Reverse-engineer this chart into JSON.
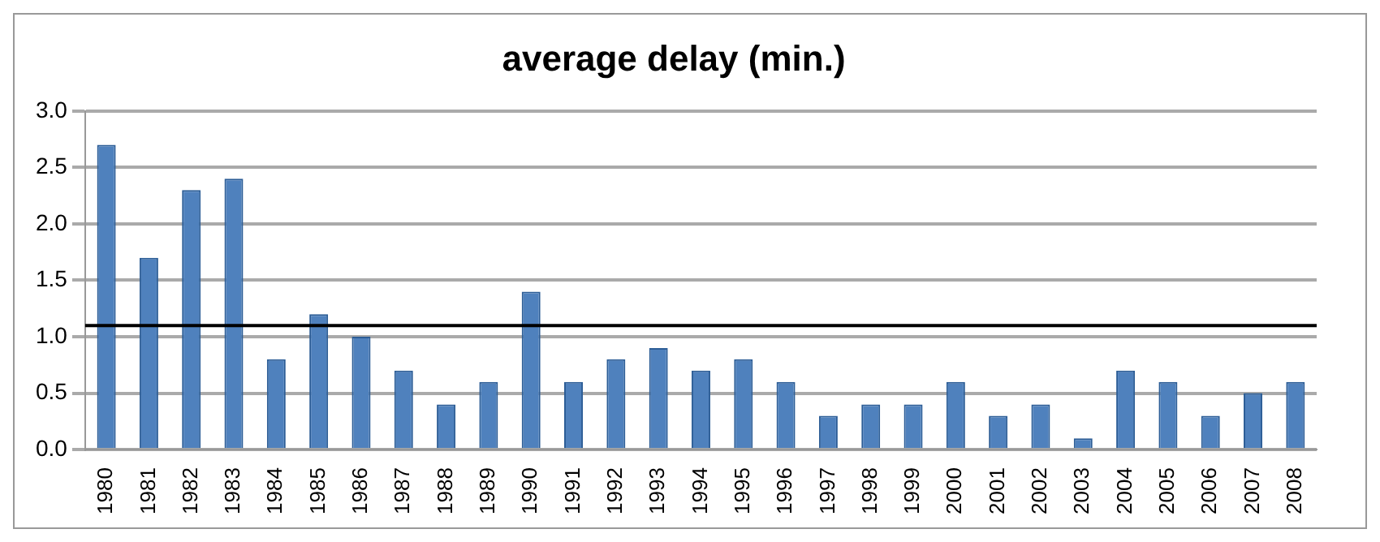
{
  "chart_data": {
    "type": "bar",
    "title": "average delay (min.)",
    "categories": [
      "1980",
      "1981",
      "1982",
      "1983",
      "1984",
      "1985",
      "1986",
      "1987",
      "1988",
      "1989",
      "1990",
      "1991",
      "1992",
      "1993",
      "1994",
      "1995",
      "1996",
      "1997",
      "1998",
      "1999",
      "2000",
      "2001",
      "2002",
      "2003",
      "2004",
      "2005",
      "2006",
      "2007",
      "2008"
    ],
    "values": [
      2.7,
      1.7,
      2.3,
      2.4,
      0.8,
      1.2,
      1.0,
      0.7,
      0.4,
      0.6,
      1.4,
      0.6,
      0.8,
      0.9,
      0.7,
      0.8,
      0.6,
      0.3,
      0.4,
      0.4,
      0.6,
      0.3,
      0.4,
      0.1,
      0.7,
      0.6,
      0.3,
      0.5,
      0.6
    ],
    "color": "#4f81bd",
    "ylim": [
      0,
      3
    ],
    "yticks": [
      {
        "value": 0,
        "label": "0.0"
      },
      {
        "value": 0.5,
        "label": "0.5"
      },
      {
        "value": 1,
        "label": "1.0"
      },
      {
        "value": 1.5,
        "label": "1.5"
      },
      {
        "value": 2,
        "label": "2.0"
      },
      {
        "value": 2.5,
        "label": "2.5"
      },
      {
        "value": 3,
        "label": "3.0"
      }
    ],
    "grid": "y",
    "ref_lines": [
      {
        "axis": "y",
        "value": 1.1,
        "color": "#000000"
      }
    ]
  }
}
